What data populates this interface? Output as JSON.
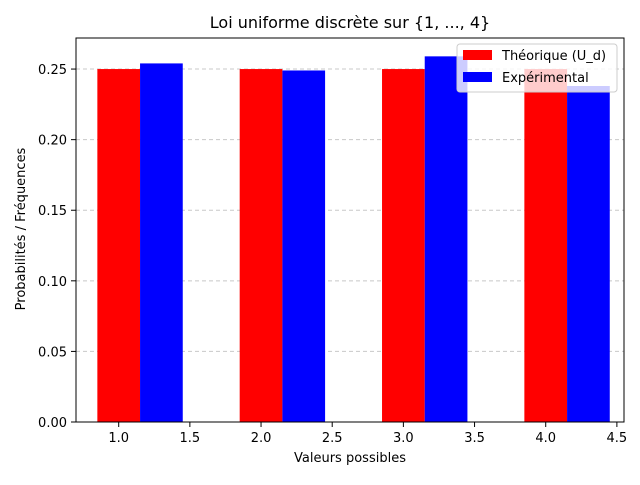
{
  "chart_data": {
    "type": "bar",
    "title": "Loi uniforme discrète sur {1, ..., 4}",
    "xlabel": "Valeurs possibles",
    "ylabel": "Probabilités / Fréquences",
    "xlim": [
      0.7,
      4.55
    ],
    "ylim": [
      0,
      0.272
    ],
    "x_ticks": [
      1.0,
      1.5,
      2.0,
      2.5,
      3.0,
      3.5,
      4.0,
      4.5
    ],
    "x_tick_labels": [
      "1.0",
      "1.5",
      "2.0",
      "2.5",
      "3.0",
      "3.5",
      "4.0",
      "4.5"
    ],
    "y_ticks": [
      0.0,
      0.05,
      0.1,
      0.15,
      0.2,
      0.25
    ],
    "y_tick_labels": [
      "0.00",
      "0.05",
      "0.10",
      "0.15",
      "0.20",
      "0.25"
    ],
    "grid": "y-dashed",
    "legend_placement": "top-right",
    "bar_width": 0.3,
    "series": [
      {
        "name": "Théorique (U_d)",
        "color": "#ff0000",
        "x": [
          1,
          2,
          3,
          4
        ],
        "values": [
          0.25,
          0.25,
          0.25,
          0.25
        ]
      },
      {
        "name": "Expérimental",
        "color": "#0000ff",
        "x": [
          1.3,
          2.3,
          3.3,
          4.3
        ],
        "values": [
          0.254,
          0.249,
          0.259,
          0.238
        ]
      }
    ]
  }
}
